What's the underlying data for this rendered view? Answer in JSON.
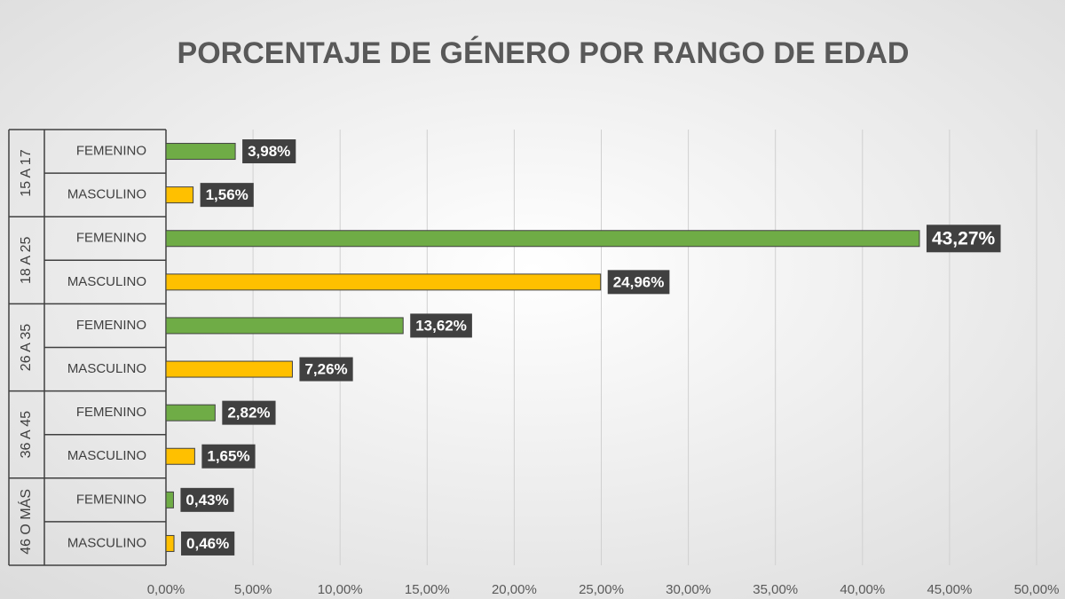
{
  "chart_data": {
    "type": "hbar",
    "title": "PORCENTAJE DE GÉNERO POR RANGO DE EDAD",
    "groups": [
      "15 A 17",
      "18 A 25",
      "26 A 35",
      "36 A 45",
      "46 O MÁS"
    ],
    "categories": [
      "FEMENINO",
      "MASCULINO",
      "FEMENINO",
      "MASCULINO",
      "FEMENINO",
      "MASCULINO",
      "FEMENINO",
      "MASCULINO",
      "FEMENINO",
      "MASCULINO"
    ],
    "values": [
      3.98,
      1.56,
      43.27,
      24.96,
      13.62,
      7.26,
      2.82,
      1.65,
      0.43,
      0.46
    ],
    "value_labels": [
      "3,98%",
      "1,56%",
      "43,27%",
      "24,96%",
      "13,62%",
      "7,26%",
      "2,82%",
      "1,65%",
      "0,43%",
      "0,46%"
    ],
    "colors": [
      "#6fac46",
      "#ffc000",
      "#6fac46",
      "#ffc000",
      "#6fac46",
      "#ffc000",
      "#6fac46",
      "#ffc000",
      "#6fac46",
      "#ffc000"
    ],
    "xlim": [
      0,
      50
    ],
    "xticks": [
      {
        "value": 0,
        "label": "0,00%"
      },
      {
        "value": 5,
        "label": "5,00%"
      },
      {
        "value": 10,
        "label": "10,00%"
      },
      {
        "value": 15,
        "label": "15,00%"
      },
      {
        "value": 20,
        "label": "20,00%"
      },
      {
        "value": 25,
        "label": "25,00%"
      },
      {
        "value": 30,
        "label": "30,00%"
      },
      {
        "value": 35,
        "label": "35,00%"
      },
      {
        "value": 40,
        "label": "40,00%"
      },
      {
        "value": 45,
        "label": "45,00%"
      },
      {
        "value": 50,
        "label": "50,00%"
      }
    ],
    "grid": true
  }
}
